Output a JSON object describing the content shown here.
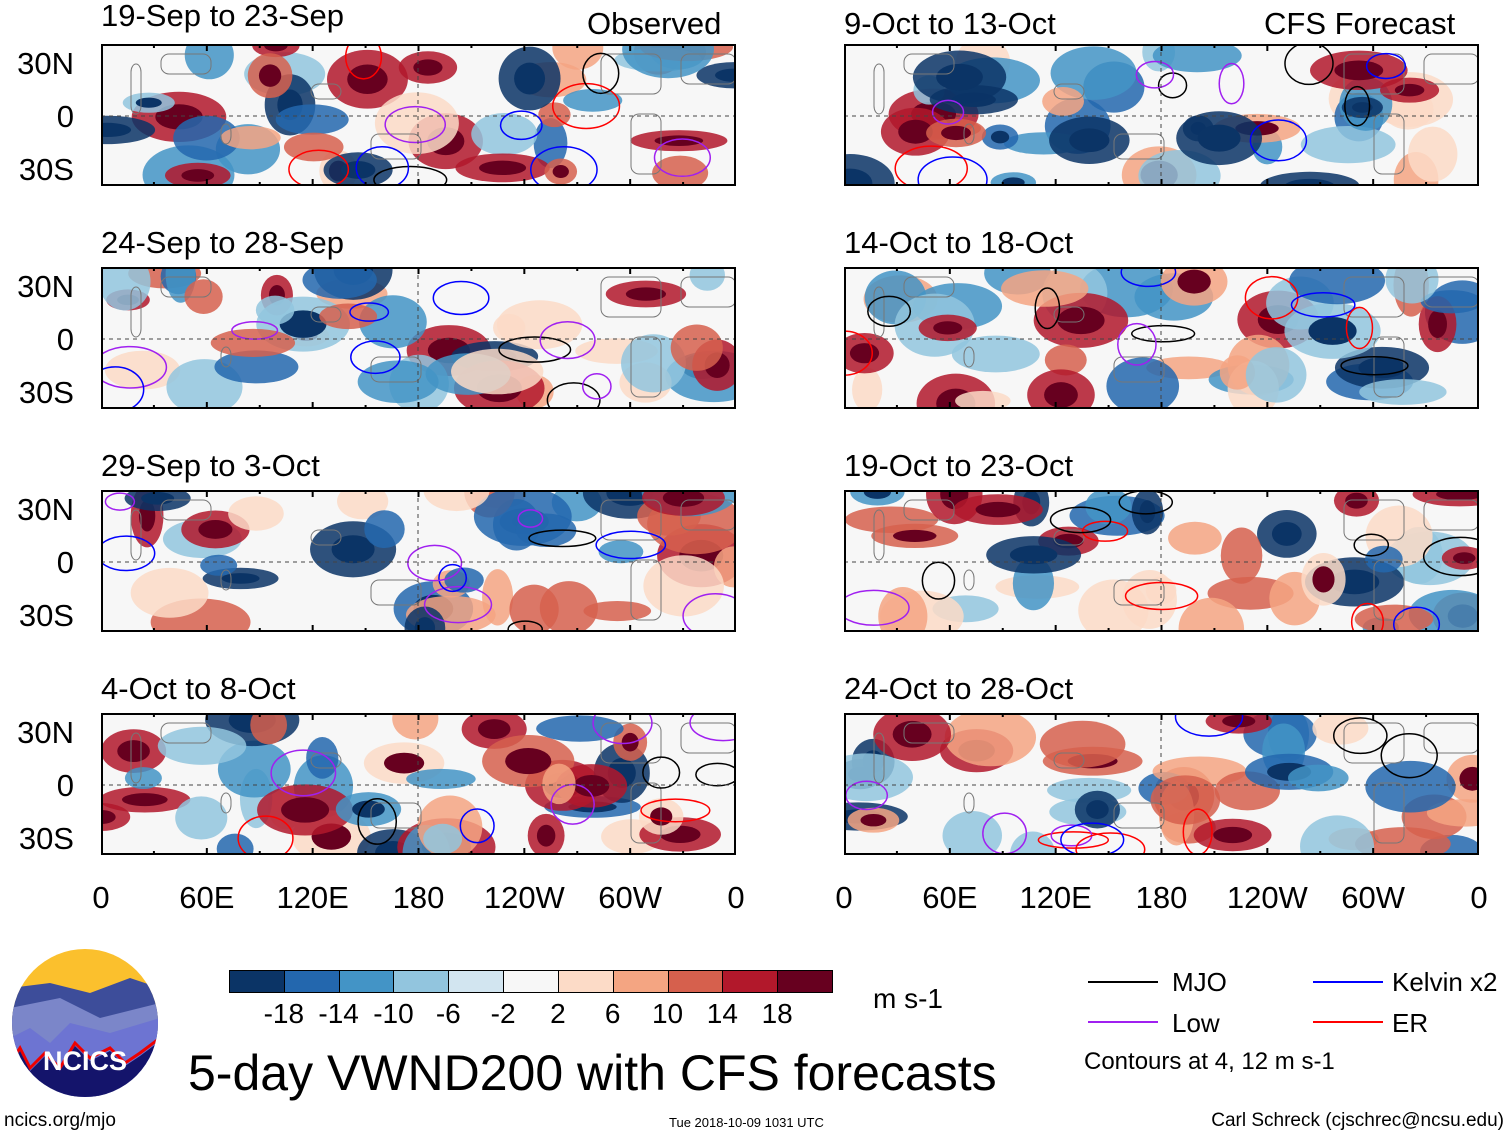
{
  "header": {
    "observed_label": "Observed",
    "forecast_label": "CFS Forecast"
  },
  "observed_panels": [
    {
      "title": "19-Sep to 23-Sep"
    },
    {
      "title": "24-Sep to 28-Sep"
    },
    {
      "title": "29-Sep to 3-Oct"
    },
    {
      "title": "4-Oct to 8-Oct"
    }
  ],
  "forecast_panels": [
    {
      "title": "9-Oct to 13-Oct"
    },
    {
      "title": "14-Oct to 18-Oct"
    },
    {
      "title": "19-Oct to 23-Oct"
    },
    {
      "title": "24-Oct to 28-Oct"
    }
  ],
  "lat_labels": [
    "30N",
    "0",
    "30S"
  ],
  "lon_labels": [
    "0",
    "60E",
    "120E",
    "180",
    "120W",
    "60W",
    "0"
  ],
  "colorbar": {
    "colors": [
      "#0b3466",
      "#2367ae",
      "#4394c6",
      "#92c5de",
      "#d2e5f0",
      "#f7f7f7",
      "#fcdbc7",
      "#f4a582",
      "#d6604d",
      "#b2182b",
      "#67001f"
    ],
    "labels": [
      "-18",
      "-14",
      "-10",
      "-6",
      "-2",
      "2",
      "6",
      "10",
      "14",
      "18"
    ],
    "units": "m s-1"
  },
  "legend": {
    "items": [
      {
        "label": "MJO",
        "color": "#000000"
      },
      {
        "label": "Kelvin x2",
        "color": "#0000ff"
      },
      {
        "label": "Low",
        "color": "#a020f0"
      },
      {
        "label": "ER",
        "color": "#ff0000"
      }
    ],
    "note": "Contours at 4, 12 m s-1"
  },
  "logo": {
    "text": "NCICS"
  },
  "title": "5-day VWND200 with CFS forecasts",
  "footer": {
    "url": "ncics.org/mjo",
    "timestamp": "Tue 2018-10-09 1031 UTC",
    "author": "Carl Schreck (cjschrec@ncsu.edu)"
  }
}
